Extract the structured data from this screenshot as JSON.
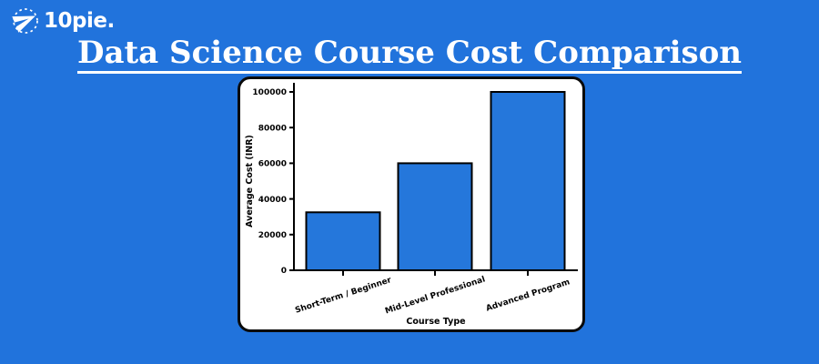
{
  "page": {
    "background_color": "#2173DC"
  },
  "logo": {
    "text": "10pie.",
    "icon": "paper-plane-icon",
    "color": "#FFFFFF"
  },
  "title": {
    "text": "Data Science Course Cost Comparison",
    "color": "#FFFFFF",
    "underlined": true
  },
  "chart_card": {
    "background_color": "#FFFFFF",
    "border_color": "#0a0a0a"
  },
  "chart_data": {
    "type": "bar",
    "title": "",
    "categories": [
      "Short-Term / Beginner",
      "Mid-Level Professional",
      "Advanced Program"
    ],
    "values": [
      32500,
      60000,
      100000
    ],
    "xlabel": "Course Type",
    "ylabel": "Average Cost (INR)",
    "ylim": [
      0,
      105000
    ],
    "yticks": [
      0,
      20000,
      40000,
      60000,
      80000,
      100000
    ],
    "ytick_labels": [
      "0",
      "20000",
      "40000",
      "60000",
      "80000",
      "100000"
    ],
    "xtick_rotation_deg": 20,
    "grid": false,
    "legend_position": "none",
    "bar_color": "#2577DB",
    "bar_edge_color": "#000000",
    "axis_color": "#000000",
    "text_color": "#000000"
  }
}
